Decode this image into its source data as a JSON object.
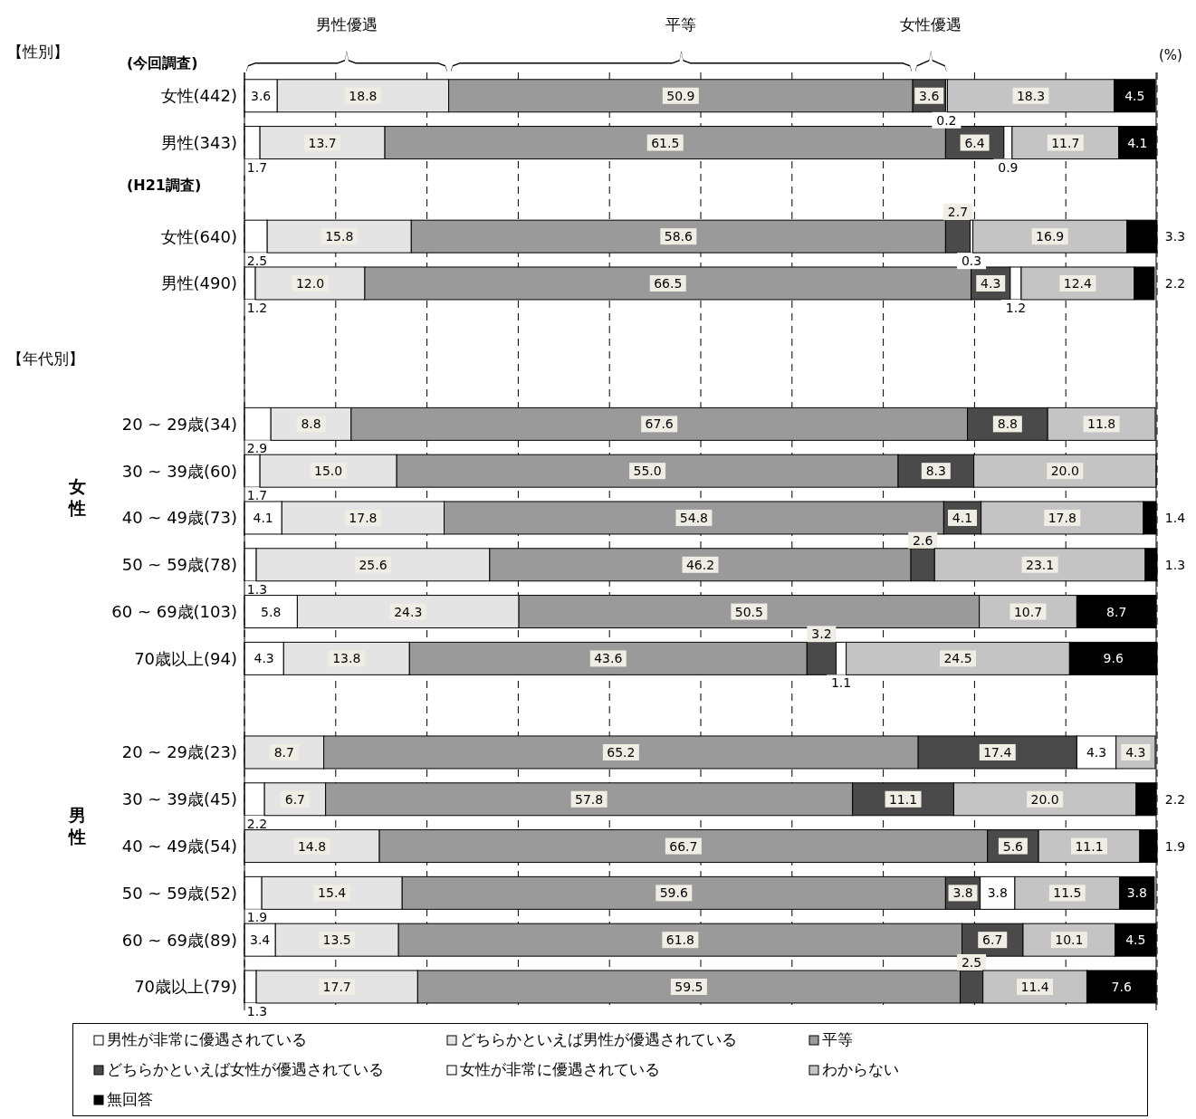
{
  "chart_data": {
    "type": "bar",
    "orientation": "horizontal",
    "stacked": true,
    "categories": [
      "女性(442)",
      "男性(343)",
      null,
      "女性(640)",
      "男性(490)",
      null,
      null,
      "20 ~ 29歳(34)",
      "30 ~ 39歳(60)",
      "40 ~ 49歳(73)",
      "50 ~ 59歳(78)",
      "60 ~ 69歳(103)",
      "70歳以上(94)",
      null,
      "20 ~ 29歳(23)",
      "30 ~ 39歳(45)",
      "40 ~ 49歳(54)",
      "50 ~ 59歳(52)",
      "60 ~ 69歳(89)",
      "70歳以上(79)"
    ],
    "series": [
      {
        "name": "男性が非常に優遇されている",
        "color": "#ffffff",
        "values": [
          3.6,
          1.7,
          null,
          2.5,
          1.2,
          null,
          null,
          2.9,
          1.7,
          4.1,
          1.3,
          5.8,
          4.3,
          null,
          0,
          2.2,
          0,
          1.9,
          3.4,
          1.3
        ],
        "value_labels": [
          "3.6",
          "1.7",
          null,
          "2.5",
          "1.2",
          null,
          null,
          "2.9",
          "1.7",
          "4.1",
          "1.3",
          "5.8",
          "4.3",
          null,
          null,
          "2.2",
          null,
          "1.9",
          "3.4",
          "1.3"
        ]
      },
      {
        "name": "どちらかといえば男性が優遇されている",
        "color": "#e4e4e4",
        "values": [
          18.8,
          13.7,
          null,
          15.8,
          12.0,
          null,
          null,
          8.8,
          15.0,
          17.8,
          25.6,
          24.3,
          13.8,
          null,
          8.7,
          6.7,
          14.8,
          15.4,
          13.5,
          17.7
        ],
        "value_labels": [
          "18.8",
          "13.7",
          null,
          "15.8",
          "12.0",
          null,
          null,
          "8.8",
          "15.0",
          "17.8",
          "25.6",
          "24.3",
          "13.8",
          null,
          "8.7",
          "6.7",
          "14.8",
          "15.4",
          "13.5",
          "17.7"
        ]
      },
      {
        "name": "平等",
        "color": "#9a9a9a",
        "values": [
          50.9,
          61.5,
          null,
          58.6,
          66.5,
          null,
          null,
          67.6,
          55.0,
          54.8,
          46.2,
          50.5,
          43.6,
          null,
          65.2,
          57.8,
          66.7,
          59.6,
          61.8,
          59.5
        ],
        "value_labels": [
          "50.9",
          "61.5",
          null,
          "58.6",
          "66.5",
          null,
          null,
          "67.6",
          "55.0",
          "54.8",
          "46.2",
          "50.5",
          "43.6",
          null,
          "65.2",
          "57.8",
          "66.7",
          "59.6",
          "61.8",
          "59.5"
        ]
      },
      {
        "name": "どちらかといえば女性が優遇されている",
        "color": "#4a4a4a",
        "values": [
          3.6,
          6.4,
          null,
          2.7,
          4.3,
          null,
          null,
          8.8,
          8.3,
          4.1,
          2.6,
          0,
          3.2,
          null,
          17.4,
          11.1,
          5.6,
          3.8,
          6.7,
          2.5
        ],
        "value_labels": [
          "3.6",
          "6.4",
          null,
          "2.7",
          "4.3",
          null,
          null,
          "8.8",
          "8.3",
          "4.1",
          "2.6",
          null,
          "3.2",
          null,
          "17.4",
          "11.1",
          "5.6",
          "3.8",
          "6.7",
          "2.5"
        ]
      },
      {
        "name": "女性が非常に優遇されている",
        "color": "#fefefe",
        "values": [
          0.2,
          0.9,
          null,
          0.3,
          1.2,
          null,
          null,
          0,
          0,
          0,
          0,
          0,
          1.1,
          null,
          4.3,
          0,
          0,
          3.8,
          0,
          0
        ],
        "value_labels": [
          "0.2",
          "0.9",
          null,
          "0.3",
          "1.2",
          null,
          null,
          null,
          null,
          null,
          null,
          null,
          "1.1",
          null,
          "4.3",
          null,
          null,
          "3.8",
          null,
          null
        ]
      },
      {
        "name": "わからない",
        "color": "#c4c4c4",
        "values": [
          18.3,
          11.7,
          null,
          16.9,
          12.4,
          null,
          null,
          11.8,
          20.0,
          17.8,
          23.1,
          10.7,
          24.5,
          null,
          4.3,
          20.0,
          11.1,
          11.5,
          10.1,
          11.4
        ],
        "value_labels": [
          "18.3",
          "11.7",
          null,
          "16.9",
          "12.4",
          null,
          null,
          "11.8",
          "20.0",
          "17.8",
          "23.1",
          "10.7",
          "24.5",
          null,
          "4.3",
          "20.0",
          "11.1",
          "11.5",
          "10.1",
          "11.4"
        ]
      },
      {
        "name": "無回答",
        "color": "#000000",
        "values": [
          4.5,
          4.1,
          null,
          3.3,
          2.2,
          null,
          null,
          0,
          0,
          1.4,
          1.3,
          8.7,
          9.6,
          null,
          0,
          2.2,
          1.9,
          3.8,
          4.5,
          7.6
        ],
        "value_labels": [
          "4.5",
          "4.1",
          null,
          "3.3",
          "2.2",
          null,
          null,
          null,
          null,
          "1.4",
          "1.3",
          "8.7",
          "9.6",
          null,
          null,
          "2.2",
          "1.9",
          "3.8",
          "4.5",
          "7.6"
        ]
      }
    ],
    "xlim": [
      0,
      100
    ],
    "xticks": [
      {
        "value": 0,
        "label": null
      },
      {
        "value": 10,
        "label": null
      },
      {
        "value": 20,
        "label": null
      },
      {
        "value": 30,
        "label": null
      },
      {
        "value": 40,
        "label": null
      },
      {
        "value": 50,
        "label": null
      },
      {
        "value": 60,
        "label": null
      },
      {
        "value": 70,
        "label": null
      },
      {
        "value": 80,
        "label": null
      },
      {
        "value": 90,
        "label": null
      },
      {
        "value": 100,
        "label": null
      }
    ],
    "tick_labels": "y",
    "grid": "x",
    "legend": "bottom",
    "annotations": [
      "男性優遇",
      "平等",
      "女性優遇",
      "(%)",
      "【性別】",
      "(今回調査)",
      "(H21調査)",
      "【年代別】",
      "女性",
      "男性"
    ]
  }
}
